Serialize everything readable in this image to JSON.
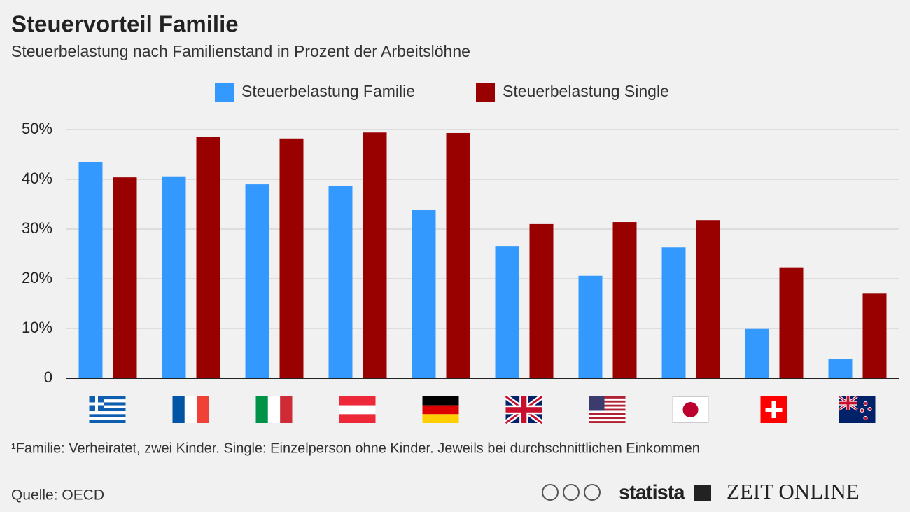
{
  "chart_data": {
    "type": "bar",
    "title": "Steuervorteil Familie",
    "subtitle": "Steuerbelastung nach Familienstand in Prozent der Arbeitslöhne",
    "categories": [
      null,
      null,
      null,
      null,
      null,
      null,
      null,
      null,
      null,
      null
    ],
    "series": [
      {
        "name": "Steuerbelastung Familie",
        "color": "#3399ff",
        "values": [
          43.4,
          40.6,
          39.0,
          38.7,
          33.8,
          26.6,
          20.6,
          26.3,
          9.9,
          3.8
        ]
      },
      {
        "name": "Steuerbelastung Single",
        "color": "#990000",
        "values": [
          40.4,
          48.5,
          48.2,
          49.4,
          49.3,
          31.0,
          31.4,
          31.8,
          22.3,
          17.0
        ]
      }
    ],
    "ylim": [
      0,
      50
    ],
    "yticks": [
      0,
      {
        "value": 10,
        "label": "10%"
      },
      {
        "value": 20,
        "label": "20%"
      },
      {
        "value": 30,
        "label": "30%"
      },
      {
        "value": 40,
        "label": "40%"
      },
      {
        "value": 50,
        "label": "50%"
      }
    ],
    "grid": true,
    "legend": "top",
    "footnote": "¹Familie: Verheiratet, zwei Kinder. Single: Einzelperson ohne Kinder. Jeweils bei durchschnittlichen Einkommen",
    "source": "Quelle: OECD",
    "logos": [
      "statista",
      "ZEIT ONLINE"
    ]
  }
}
